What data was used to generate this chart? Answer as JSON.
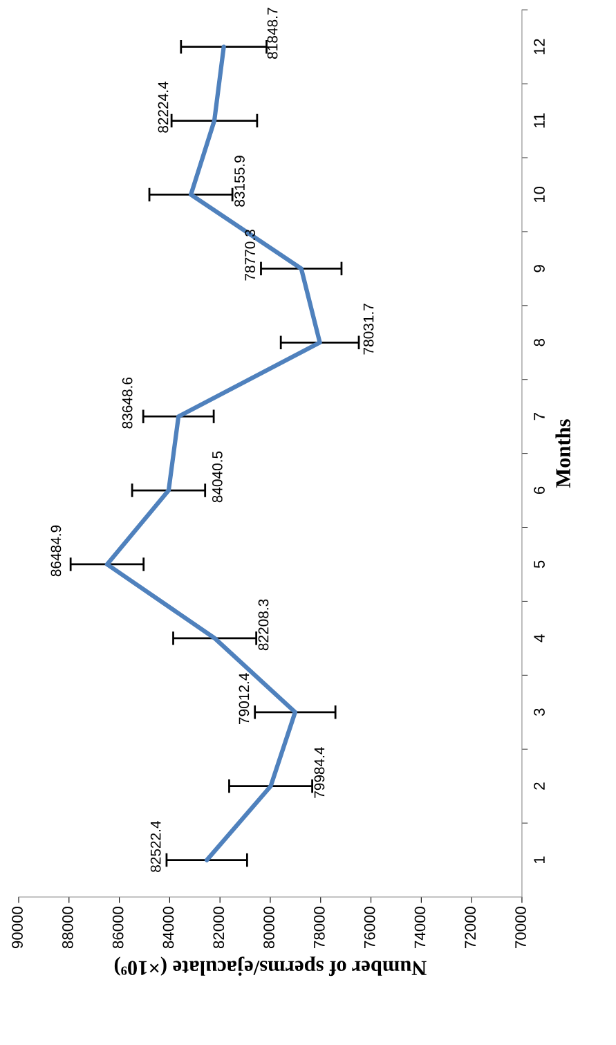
{
  "chart_data": {
    "type": "line",
    "orientation": "horizontal",
    "xlabel": "Number of sperms/ejaculate (×10⁹)",
    "ylabel": "Months",
    "categories": [
      "12",
      "11",
      "10",
      "9",
      "8",
      "7",
      "6",
      "5",
      "4",
      "3",
      "2",
      "1"
    ],
    "series": [
      {
        "color": "#4f81bd",
        "values": [
          81848.7,
          82224.4,
          83155.9,
          78770.3,
          78031.7,
          83648.6,
          84040.5,
          86484.9,
          82208.3,
          79012.4,
          79984.4,
          82522.4
        ],
        "errors": [
          1700,
          1700,
          1650,
          1600,
          1550,
          1400,
          1450,
          1450,
          1650,
          1600,
          1650,
          1600
        ]
      }
    ],
    "data_labels": true,
    "xlim": [
      90000,
      70000
    ],
    "xticks": [
      90000,
      88000,
      86000,
      84000,
      82000,
      80000,
      78000,
      76000,
      74000,
      72000,
      70000
    ],
    "grid": false,
    "legend": false,
    "marker": "none",
    "line_style": "solid"
  }
}
